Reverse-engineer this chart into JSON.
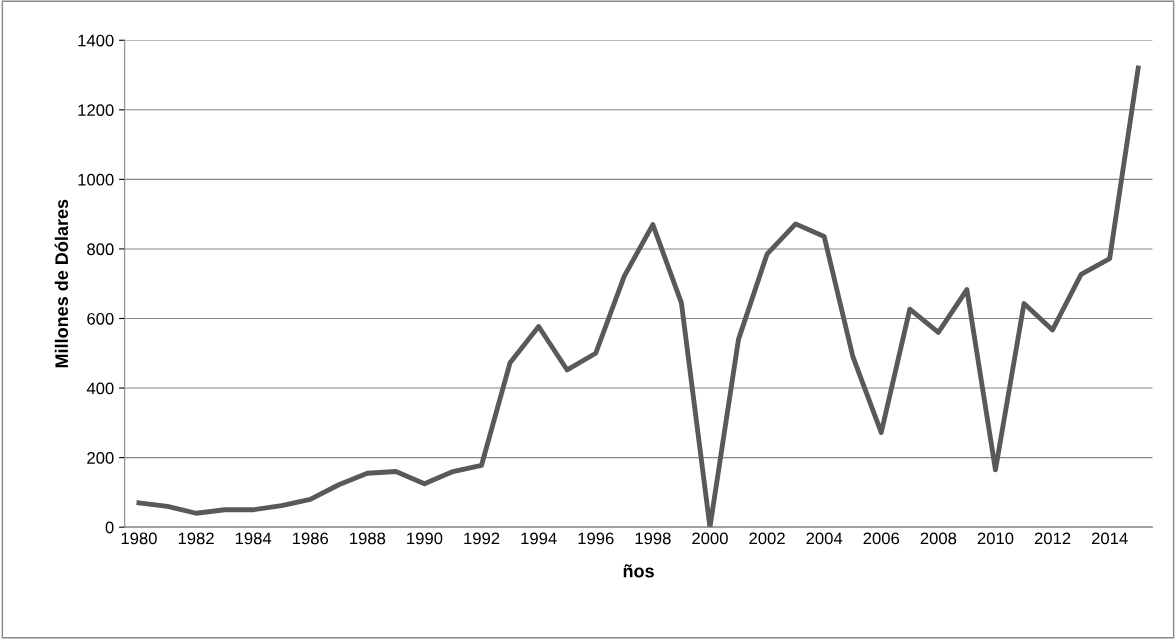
{
  "chart_data": {
    "type": "line",
    "xlabel": "ños",
    "ylabel": "Millones de Dólares",
    "categories": [
      "1980",
      null,
      "1982",
      null,
      "1984",
      null,
      "1986",
      null,
      "1988",
      null,
      "1990",
      null,
      "1992",
      null,
      "1994",
      null,
      "1996",
      null,
      "1998",
      null,
      "2000",
      null,
      "2002",
      null,
      "2004",
      null,
      "2006",
      null,
      "2008",
      null,
      "2010",
      null,
      "2012",
      null,
      "2014",
      null
    ],
    "series": [
      {
        "color": "#595959",
        "values": [
          70,
          60,
          40,
          50,
          50,
          62,
          80,
          122,
          155,
          160,
          125,
          160,
          178,
          473,
          577,
          452,
          500,
          722,
          870,
          645,
          0,
          540,
          785,
          872,
          836,
          492,
          272,
          627,
          560,
          683,
          165,
          643,
          567,
          727,
          772,
          1320
        ]
      }
    ],
    "ylim": [
      0,
      1400
    ],
    "yticks": [
      0,
      200,
      400,
      600,
      800,
      1000,
      1200,
      1400
    ],
    "grid": "y",
    "marker": "none",
    "line_style": "solid",
    "legend": false
  }
}
